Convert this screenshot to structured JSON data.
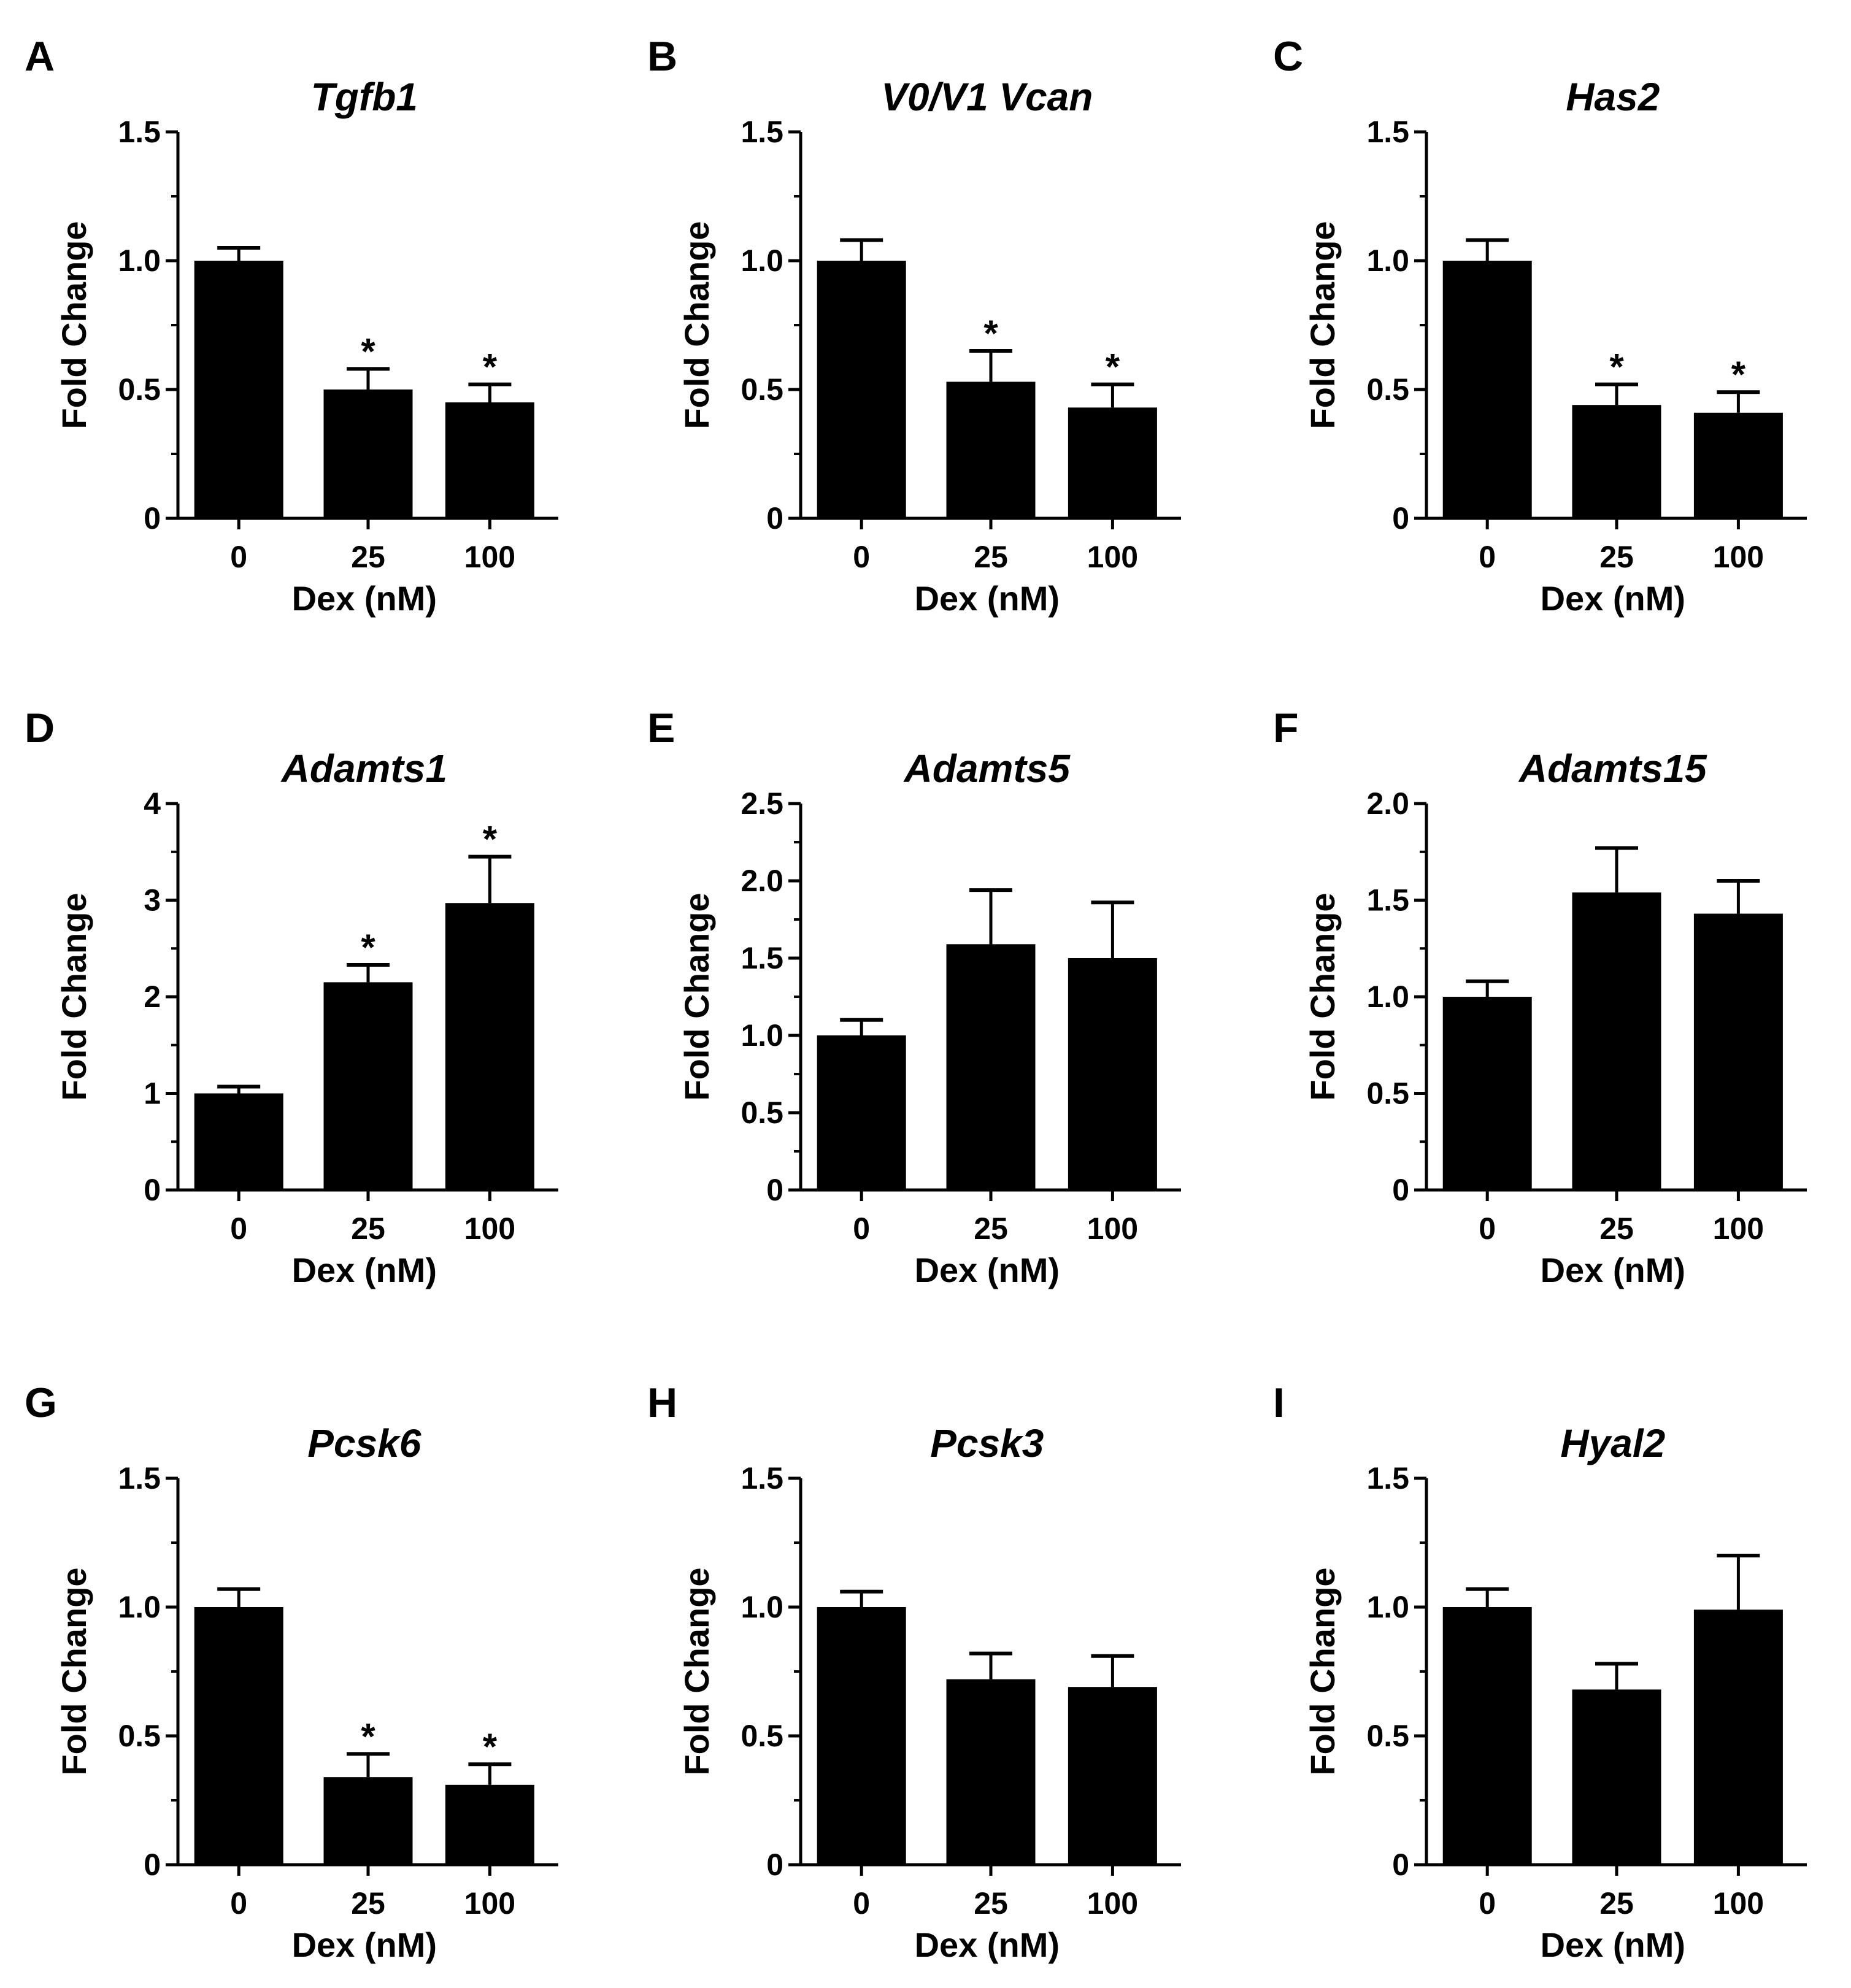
{
  "figure": {
    "background": "#ffffff",
    "bar_color": "#000000"
  },
  "chart_data": [
    {
      "panel": "A",
      "type": "bar",
      "title": "Tgfb1",
      "xlabel": "Dex (nM)",
      "ylabel": "Fold Change",
      "categories": [
        "0",
        "25",
        "100"
      ],
      "values": [
        1.0,
        0.5,
        0.45
      ],
      "errors": [
        0.05,
        0.08,
        0.07
      ],
      "significance": [
        "",
        "*",
        "*"
      ],
      "ylim": [
        0,
        1.5
      ],
      "yticks": [
        0,
        0.5,
        1.0,
        1.5
      ],
      "ytick_labels": [
        "0",
        "0.5",
        "1.0",
        "1.5"
      ],
      "grid": false,
      "legend": "none"
    },
    {
      "panel": "B",
      "type": "bar",
      "title": "V0/V1 Vcan",
      "xlabel": "Dex (nM)",
      "ylabel": "Fold Change",
      "categories": [
        "0",
        "25",
        "100"
      ],
      "values": [
        1.0,
        0.53,
        0.43
      ],
      "errors": [
        0.08,
        0.12,
        0.09
      ],
      "significance": [
        "",
        "*",
        "*"
      ],
      "ylim": [
        0,
        1.5
      ],
      "yticks": [
        0,
        0.5,
        1.0,
        1.5
      ],
      "ytick_labels": [
        "0",
        "0.5",
        "1.0",
        "1.5"
      ],
      "grid": false,
      "legend": "none"
    },
    {
      "panel": "C",
      "type": "bar",
      "title": "Has2",
      "xlabel": "Dex (nM)",
      "ylabel": "Fold Change",
      "categories": [
        "0",
        "25",
        "100"
      ],
      "values": [
        1.0,
        0.44,
        0.41
      ],
      "errors": [
        0.08,
        0.08,
        0.08
      ],
      "significance": [
        "",
        "*",
        "*"
      ],
      "ylim": [
        0,
        1.5
      ],
      "yticks": [
        0,
        0.5,
        1.0,
        1.5
      ],
      "ytick_labels": [
        "0",
        "0.5",
        "1.0",
        "1.5"
      ],
      "grid": false,
      "legend": "none"
    },
    {
      "panel": "D",
      "type": "bar",
      "title": "Adamts1",
      "xlabel": "Dex (nM)",
      "ylabel": "Fold Change",
      "categories": [
        "0",
        "25",
        "100"
      ],
      "values": [
        1.0,
        2.15,
        2.97
      ],
      "errors": [
        0.07,
        0.18,
        0.48
      ],
      "significance": [
        "",
        "*",
        "*"
      ],
      "ylim": [
        0,
        4
      ],
      "yticks": [
        0,
        1,
        2,
        3,
        4
      ],
      "ytick_labels": [
        "0",
        "1",
        "2",
        "3",
        "4"
      ],
      "grid": false,
      "legend": "none"
    },
    {
      "panel": "E",
      "type": "bar",
      "title": "Adamts5",
      "xlabel": "Dex (nM)",
      "ylabel": "Fold Change",
      "categories": [
        "0",
        "25",
        "100"
      ],
      "values": [
        1.0,
        1.59,
        1.5
      ],
      "errors": [
        0.1,
        0.35,
        0.36
      ],
      "significance": [
        "",
        "",
        ""
      ],
      "ylim": [
        0,
        2.5
      ],
      "yticks": [
        0,
        0.5,
        1.0,
        1.5,
        2.0,
        2.5
      ],
      "ytick_labels": [
        "0",
        "0.5",
        "1.0",
        "1.5",
        "2.0",
        "2.5"
      ],
      "grid": false,
      "legend": "none"
    },
    {
      "panel": "F",
      "type": "bar",
      "title": "Adamts15",
      "xlabel": "Dex (nM)",
      "ylabel": "Fold Change",
      "categories": [
        "0",
        "25",
        "100"
      ],
      "values": [
        1.0,
        1.54,
        1.43
      ],
      "errors": [
        0.08,
        0.23,
        0.17
      ],
      "significance": [
        "",
        "",
        ""
      ],
      "ylim": [
        0,
        2.0
      ],
      "yticks": [
        0,
        0.5,
        1.0,
        1.5,
        2.0
      ],
      "ytick_labels": [
        "0",
        "0.5",
        "1.0",
        "1.5",
        "2.0"
      ],
      "grid": false,
      "legend": "none"
    },
    {
      "panel": "G",
      "type": "bar",
      "title": "Pcsk6",
      "xlabel": "Dex (nM)",
      "ylabel": "Fold Change",
      "categories": [
        "0",
        "25",
        "100"
      ],
      "values": [
        1.0,
        0.34,
        0.31
      ],
      "errors": [
        0.07,
        0.09,
        0.08
      ],
      "significance": [
        "",
        "*",
        "*"
      ],
      "ylim": [
        0,
        1.5
      ],
      "yticks": [
        0,
        0.5,
        1.0,
        1.5
      ],
      "ytick_labels": [
        "0",
        "0.5",
        "1.0",
        "1.5"
      ],
      "grid": false,
      "legend": "none"
    },
    {
      "panel": "H",
      "type": "bar",
      "title": "Pcsk3",
      "xlabel": "Dex (nM)",
      "ylabel": "Fold Change",
      "categories": [
        "0",
        "25",
        "100"
      ],
      "values": [
        1.0,
        0.72,
        0.69
      ],
      "errors": [
        0.06,
        0.1,
        0.12
      ],
      "significance": [
        "",
        "",
        ""
      ],
      "ylim": [
        0,
        1.5
      ],
      "yticks": [
        0,
        0.5,
        1.0,
        1.5
      ],
      "ytick_labels": [
        "0",
        "0.5",
        "1.0",
        "1.5"
      ],
      "grid": false,
      "legend": "none"
    },
    {
      "panel": "I",
      "type": "bar",
      "title": "Hyal2",
      "xlabel": "Dex (nM)",
      "ylabel": "Fold Change",
      "categories": [
        "0",
        "25",
        "100"
      ],
      "values": [
        1.0,
        0.68,
        0.99
      ],
      "errors": [
        0.07,
        0.1,
        0.21
      ],
      "significance": [
        "",
        "",
        ""
      ],
      "ylim": [
        0,
        1.5
      ],
      "yticks": [
        0,
        0.5,
        1.0,
        1.5
      ],
      "ytick_labels": [
        "0",
        "0.5",
        "1.0",
        "1.5"
      ],
      "grid": false,
      "legend": "none"
    }
  ]
}
